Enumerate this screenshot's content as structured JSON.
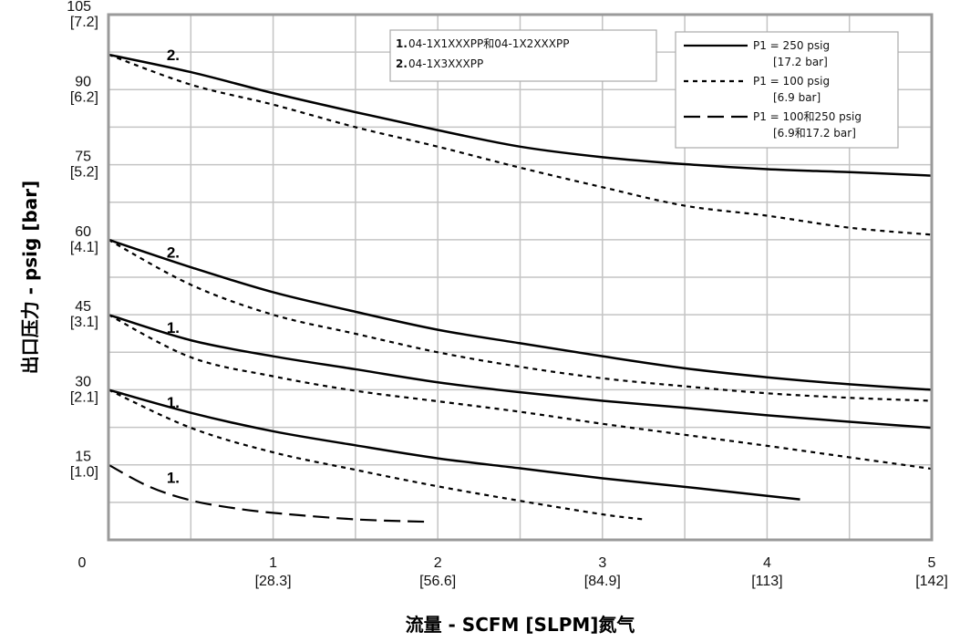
{
  "chart_data": {
    "type": "line",
    "xlabel": "流量 - SCFM [SLPM]氮气",
    "ylabel": "出口压力 - psig [bar]",
    "xlim": [
      0,
      5
    ],
    "ylim": [
      0,
      105
    ],
    "grid": true,
    "origin_label": "0",
    "x_ticks": [
      {
        "value": 1,
        "line1": "1",
        "line2": "[28.3]"
      },
      {
        "value": 2,
        "line1": "2",
        "line2": "[56.6]"
      },
      {
        "value": 3,
        "line1": "3",
        "line2": "[84.9]"
      },
      {
        "value": 4,
        "line1": "4",
        "line2": "[113]"
      },
      {
        "value": 5,
        "line1": "5",
        "line2": "[142]"
      }
    ],
    "y_ticks": [
      {
        "value": 15,
        "line1": "15",
        "line2": "[1.0]"
      },
      {
        "value": 30,
        "line1": "30",
        "line2": "[2.1]"
      },
      {
        "value": 45,
        "line1": "45",
        "line2": "[3.1]"
      },
      {
        "value": 60,
        "line1": "60",
        "line2": "[4.1]"
      },
      {
        "value": 75,
        "line1": "75",
        "line2": "[5.2]"
      },
      {
        "value": 90,
        "line1": "90",
        "line2": "[6.2]"
      },
      {
        "value": 105,
        "line1": "105",
        "line2": "[7.2]"
      }
    ],
    "series": [
      {
        "style": "solid",
        "x": [
          0,
          0.5,
          1,
          1.5,
          2,
          2.5,
          3,
          3.5,
          4,
          4.5,
          5
        ],
        "y": [
          97,
          93.5,
          89.3,
          85.5,
          81.9,
          78.6,
          76.5,
          75.1,
          74.1,
          73.5,
          72.8
        ]
      },
      {
        "style": "dotted",
        "x": [
          0,
          0.5,
          1,
          1.5,
          2,
          2.5,
          3,
          3.5,
          4,
          4.5,
          5
        ],
        "y": [
          97,
          91,
          87,
          82.5,
          78.6,
          74.4,
          70.5,
          66.8,
          64.8,
          62.4,
          61
        ]
      },
      {
        "style": "solid",
        "x": [
          0,
          0.5,
          1,
          1.5,
          2,
          2.5,
          3,
          3.5,
          4,
          4.5,
          5
        ],
        "y": [
          60,
          54.5,
          49.5,
          45.6,
          42,
          39.3,
          36.7,
          34.3,
          32.5,
          31.1,
          30
        ]
      },
      {
        "style": "dotted",
        "x": [
          0,
          0.5,
          1,
          1.5,
          2,
          2.5,
          3,
          3.5,
          4,
          4.5,
          5
        ],
        "y": [
          60,
          51,
          45,
          41.2,
          37.5,
          34.6,
          32.3,
          30.7,
          29.3,
          28.4,
          27.8
        ]
      },
      {
        "style": "solid",
        "x": [
          0,
          0.5,
          1,
          1.5,
          2,
          2.5,
          3,
          3.5,
          4,
          4.5,
          5
        ],
        "y": [
          45,
          39.9,
          36.7,
          34.1,
          31.5,
          29.5,
          27.8,
          26.4,
          24.9,
          23.6,
          22.4
        ]
      },
      {
        "style": "dotted",
        "x": [
          0,
          0.5,
          1,
          1.5,
          2,
          2.5,
          3,
          3.5,
          4,
          4.5,
          5
        ],
        "y": [
          45,
          36.5,
          32.7,
          29.8,
          27.7,
          25.6,
          23.2,
          21,
          18.8,
          16.5,
          14.2
        ]
      },
      {
        "style": "solid",
        "x": [
          0,
          0.5,
          1,
          1.5,
          2,
          2.5,
          3,
          3.5,
          4,
          4.2
        ],
        "y": [
          30,
          25.4,
          21.7,
          18.9,
          16.3,
          14.3,
          12.3,
          10.6,
          8.8,
          8.1
        ]
      },
      {
        "style": "dotted",
        "x": [
          0,
          0.5,
          1,
          1.5,
          2,
          2.5,
          3,
          3.25
        ],
        "y": [
          30,
          22.4,
          17.5,
          14,
          10.7,
          7.8,
          5.1,
          4.1
        ]
      },
      {
        "style": "dashed",
        "x": [
          0,
          0.25,
          0.5,
          0.75,
          1,
          1.5,
          1.95
        ],
        "y": [
          15,
          10.6,
          7.9,
          6.4,
          5.4,
          4.1,
          3.6
        ]
      }
    ],
    "curve_labels": [
      {
        "text": "2.",
        "x": 0.42,
        "y": 97
      },
      {
        "text": "2.",
        "x": 0.42,
        "y": 57.5
      },
      {
        "text": "1.",
        "x": 0.42,
        "y": 42.5
      },
      {
        "text": "1.",
        "x": 0.42,
        "y": 27.5
      },
      {
        "text": "1.",
        "x": 0.42,
        "y": 12.5
      }
    ],
    "model_legend": [
      {
        "num": "1.",
        "text": "04-1X1XXXPP和04-1X2XXXPP"
      },
      {
        "num": "2.",
        "text": "04-1X3XXXPP"
      }
    ],
    "style_legend": [
      {
        "style": "solid",
        "line1": "P1 = 250 psig",
        "line2": "[17.2 bar]"
      },
      {
        "style": "dotted",
        "line1": "P1 = 100 psig",
        "line2": "[6.9 bar]"
      },
      {
        "style": "dashed",
        "line1": "P1 = 100和250 psig",
        "line2": "[6.9和17.2 bar]"
      }
    ]
  }
}
